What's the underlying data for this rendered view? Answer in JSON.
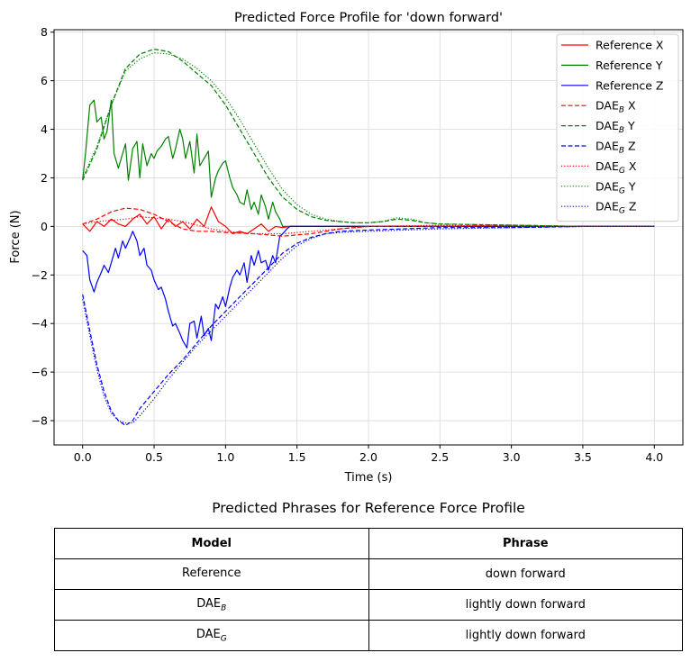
{
  "chart_data": {
    "type": "line",
    "title": "Predicted Force Profile for 'down forward'",
    "xlabel": "Time (s)",
    "ylabel": "Force (N)",
    "xlim": [
      -0.2,
      4.2
    ],
    "ylim": [
      -9.0,
      8.1
    ],
    "xticks": [
      0.0,
      0.5,
      1.0,
      1.5,
      2.0,
      2.5,
      3.0,
      3.5,
      4.0
    ],
    "xtick_labels": [
      "0.0",
      "0.5",
      "1.0",
      "1.5",
      "2.0",
      "2.5",
      "3.0",
      "3.5",
      "4.0"
    ],
    "yticks": [
      -8,
      -6,
      -4,
      -2,
      0,
      2,
      4,
      6,
      8
    ],
    "ytick_labels": [
      "−8",
      "−6",
      "−4",
      "−2",
      "0",
      "2",
      "4",
      "6",
      "8"
    ],
    "grid": true,
    "legend_position": "top-right",
    "series": [
      {
        "name": "Reference X",
        "legend_base": "Reference X",
        "legend_sub": "",
        "legend_suffix": "",
        "color": "#ff0000",
        "style": "solid",
        "x": [
          0.0,
          0.05,
          0.1,
          0.15,
          0.2,
          0.25,
          0.3,
          0.35,
          0.4,
          0.45,
          0.5,
          0.55,
          0.6,
          0.65,
          0.7,
          0.75,
          0.8,
          0.85,
          0.9,
          0.95,
          1.0,
          1.05,
          1.1,
          1.15,
          1.2,
          1.25,
          1.3,
          1.35,
          1.4,
          1.45,
          1.5,
          2.0,
          2.5,
          3.0,
          3.5,
          4.0
        ],
        "y": [
          0.1,
          -0.2,
          0.2,
          0.0,
          0.3,
          0.1,
          0.0,
          0.3,
          0.5,
          0.1,
          0.4,
          -0.1,
          0.3,
          0.0,
          0.2,
          -0.1,
          0.3,
          0.0,
          0.8,
          0.2,
          0.0,
          -0.3,
          -0.2,
          -0.3,
          -0.1,
          0.1,
          -0.2,
          0.0,
          -0.05,
          0.0,
          0.0,
          0.0,
          0.0,
          0.0,
          0.0,
          0.0
        ]
      },
      {
        "name": "Reference Y",
        "legend_base": "Reference Y",
        "legend_sub": "",
        "legend_suffix": "",
        "color": "#008000",
        "style": "solid",
        "x": [
          0.0,
          0.02,
          0.05,
          0.08,
          0.1,
          0.13,
          0.15,
          0.17,
          0.2,
          0.22,
          0.25,
          0.28,
          0.3,
          0.32,
          0.35,
          0.38,
          0.4,
          0.42,
          0.45,
          0.48,
          0.5,
          0.52,
          0.55,
          0.58,
          0.6,
          0.63,
          0.65,
          0.68,
          0.7,
          0.72,
          0.75,
          0.78,
          0.8,
          0.82,
          0.85,
          0.88,
          0.9,
          0.93,
          0.95,
          0.98,
          1.0,
          1.03,
          1.05,
          1.08,
          1.1,
          1.13,
          1.15,
          1.18,
          1.2,
          1.23,
          1.25,
          1.28,
          1.3,
          1.33,
          1.35,
          1.38,
          1.4,
          1.42,
          1.45,
          1.5,
          2.0,
          2.5,
          3.0,
          3.5,
          4.0
        ],
        "y": [
          1.9,
          3.0,
          5.0,
          5.2,
          4.3,
          4.5,
          3.6,
          3.9,
          5.2,
          3.0,
          2.4,
          3.0,
          3.4,
          1.9,
          3.2,
          3.5,
          2.0,
          3.4,
          2.5,
          3.0,
          2.8,
          3.1,
          3.3,
          3.6,
          3.7,
          2.8,
          3.2,
          4.0,
          3.6,
          2.8,
          3.5,
          2.2,
          3.8,
          2.5,
          2.8,
          3.1,
          1.2,
          2.0,
          2.3,
          2.6,
          2.7,
          2.0,
          1.6,
          1.3,
          1.0,
          0.9,
          1.5,
          0.7,
          1.0,
          0.5,
          1.3,
          0.8,
          0.3,
          1.0,
          0.6,
          0.3,
          0.0,
          0.0,
          0.0,
          0.0,
          0.0,
          0.0,
          0.0,
          0.0,
          0.0
        ]
      },
      {
        "name": "Reference Z",
        "legend_base": "Reference Z",
        "legend_sub": "",
        "legend_suffix": "",
        "color": "#0000ff",
        "style": "solid",
        "x": [
          0.0,
          0.03,
          0.05,
          0.08,
          0.1,
          0.13,
          0.15,
          0.18,
          0.2,
          0.23,
          0.25,
          0.28,
          0.3,
          0.33,
          0.35,
          0.38,
          0.4,
          0.43,
          0.45,
          0.48,
          0.5,
          0.53,
          0.55,
          0.58,
          0.6,
          0.63,
          0.65,
          0.68,
          0.7,
          0.73,
          0.75,
          0.78,
          0.8,
          0.83,
          0.85,
          0.88,
          0.9,
          0.93,
          0.95,
          0.98,
          1.0,
          1.03,
          1.05,
          1.08,
          1.1,
          1.13,
          1.15,
          1.18,
          1.2,
          1.23,
          1.25,
          1.28,
          1.3,
          1.33,
          1.35,
          1.38,
          1.4,
          1.43,
          1.45,
          1.5,
          2.0,
          2.5,
          3.0,
          3.5,
          4.0
        ],
        "y": [
          -1.0,
          -1.2,
          -2.2,
          -2.7,
          -2.3,
          -1.9,
          -1.6,
          -1.9,
          -1.5,
          -0.9,
          -1.3,
          -0.6,
          -0.9,
          -0.5,
          -0.2,
          -0.6,
          -1.2,
          -0.9,
          -1.6,
          -1.8,
          -2.2,
          -2.6,
          -2.5,
          -3.0,
          -3.5,
          -4.1,
          -4.0,
          -4.4,
          -4.7,
          -5.0,
          -4.0,
          -3.9,
          -4.6,
          -3.7,
          -4.5,
          -4.2,
          -4.7,
          -3.2,
          -3.4,
          -2.9,
          -3.3,
          -2.5,
          -2.1,
          -1.8,
          -2.0,
          -1.5,
          -2.3,
          -1.2,
          -1.6,
          -1.0,
          -1.5,
          -1.4,
          -1.8,
          -1.2,
          -1.5,
          -0.4,
          -0.3,
          -0.1,
          0.0,
          0.0,
          0.0,
          0.0,
          0.0,
          0.0,
          0.0
        ]
      },
      {
        "name": "DAEB X",
        "legend_base": "DAE",
        "legend_sub": "B",
        "legend_suffix": " X",
        "color": "#ff0000",
        "style": "dashed",
        "x": [
          0.0,
          0.1,
          0.2,
          0.3,
          0.4,
          0.5,
          0.6,
          0.7,
          0.8,
          0.9,
          1.0,
          1.2,
          1.4,
          1.6,
          1.8,
          2.0,
          2.5,
          3.0,
          3.5,
          4.0
        ],
        "y": [
          0.1,
          0.3,
          0.6,
          0.75,
          0.7,
          0.5,
          0.2,
          -0.1,
          -0.2,
          -0.2,
          -0.25,
          -0.3,
          -0.4,
          -0.3,
          -0.1,
          0.0,
          0.0,
          0.05,
          0.0,
          0.0
        ]
      },
      {
        "name": "DAEB Y",
        "legend_base": "DAE",
        "legend_sub": "B",
        "legend_suffix": " Y",
        "color": "#008000",
        "style": "dashed",
        "x": [
          0.0,
          0.1,
          0.2,
          0.3,
          0.4,
          0.5,
          0.6,
          0.7,
          0.8,
          0.9,
          1.0,
          1.1,
          1.2,
          1.3,
          1.4,
          1.5,
          1.6,
          1.7,
          1.8,
          1.9,
          2.0,
          2.1,
          2.2,
          2.3,
          2.4,
          2.5,
          3.0,
          3.5,
          4.0
        ],
        "y": [
          1.9,
          3.2,
          5.0,
          6.5,
          7.1,
          7.3,
          7.2,
          6.8,
          6.3,
          5.8,
          5.0,
          4.0,
          3.0,
          2.0,
          1.2,
          0.7,
          0.4,
          0.25,
          0.2,
          0.15,
          0.15,
          0.2,
          0.3,
          0.25,
          0.15,
          0.1,
          0.05,
          0.0,
          0.0
        ]
      },
      {
        "name": "DAEB Z",
        "legend_base": "DAE",
        "legend_sub": "B",
        "legend_suffix": " Z",
        "color": "#0000ff",
        "style": "dashed",
        "x": [
          0.0,
          0.05,
          0.1,
          0.15,
          0.2,
          0.25,
          0.3,
          0.35,
          0.4,
          0.5,
          0.6,
          0.7,
          0.8,
          0.9,
          1.0,
          1.1,
          1.2,
          1.3,
          1.4,
          1.5,
          1.6,
          1.7,
          1.8,
          2.0,
          2.5,
          3.0,
          3.5,
          4.0
        ],
        "y": [
          -2.8,
          -4.3,
          -5.7,
          -6.8,
          -7.6,
          -8.0,
          -8.2,
          -8.0,
          -7.5,
          -6.8,
          -6.1,
          -5.5,
          -4.8,
          -4.1,
          -3.5,
          -2.9,
          -2.3,
          -1.7,
          -1.1,
          -0.7,
          -0.45,
          -0.3,
          -0.2,
          -0.15,
          -0.05,
          -0.05,
          0.0,
          0.0
        ]
      },
      {
        "name": "DAEG X",
        "legend_base": "DAE",
        "legend_sub": "G",
        "legend_suffix": " X",
        "color": "#ff0000",
        "style": "dotted",
        "x": [
          0.0,
          0.1,
          0.2,
          0.3,
          0.4,
          0.5,
          0.6,
          0.7,
          0.8,
          0.9,
          1.0,
          1.2,
          1.4,
          1.6,
          1.8,
          2.0,
          2.5,
          3.0,
          3.5,
          4.0
        ],
        "y": [
          0.1,
          0.2,
          0.25,
          0.3,
          0.4,
          0.35,
          0.3,
          0.2,
          0.05,
          -0.1,
          -0.2,
          -0.3,
          -0.3,
          -0.2,
          -0.1,
          0.0,
          0.05,
          0.0,
          0.0,
          0.0
        ]
      },
      {
        "name": "DAEG Y",
        "legend_base": "DAE",
        "legend_sub": "G",
        "legend_suffix": " Y",
        "color": "#008000",
        "style": "dotted",
        "x": [
          0.0,
          0.1,
          0.2,
          0.3,
          0.4,
          0.5,
          0.6,
          0.7,
          0.8,
          0.9,
          1.0,
          1.1,
          1.2,
          1.3,
          1.4,
          1.5,
          1.6,
          1.7,
          1.8,
          1.9,
          2.0,
          2.1,
          2.2,
          2.3,
          2.4,
          2.5,
          3.0,
          3.5,
          4.0
        ],
        "y": [
          2.0,
          3.3,
          5.0,
          6.4,
          6.9,
          7.15,
          7.1,
          6.9,
          6.5,
          6.0,
          5.3,
          4.4,
          3.4,
          2.4,
          1.5,
          0.9,
          0.5,
          0.3,
          0.2,
          0.15,
          0.15,
          0.2,
          0.35,
          0.3,
          0.15,
          0.1,
          0.05,
          0.0,
          0.0
        ]
      },
      {
        "name": "DAEG Z",
        "legend_base": "DAE",
        "legend_sub": "G",
        "legend_suffix": " Z",
        "color": "#0000ff",
        "style": "dotted",
        "x": [
          0.0,
          0.05,
          0.1,
          0.15,
          0.2,
          0.25,
          0.3,
          0.35,
          0.4,
          0.5,
          0.6,
          0.7,
          0.8,
          0.9,
          1.0,
          1.1,
          1.2,
          1.3,
          1.4,
          1.5,
          1.6,
          1.7,
          1.8,
          2.0,
          2.5,
          3.0,
          3.5,
          4.0
        ],
        "y": [
          -3.0,
          -4.5,
          -5.9,
          -7.0,
          -7.7,
          -8.0,
          -8.1,
          -8.1,
          -7.8,
          -7.1,
          -6.3,
          -5.6,
          -4.9,
          -4.3,
          -3.7,
          -3.1,
          -2.5,
          -1.9,
          -1.3,
          -0.8,
          -0.5,
          -0.3,
          -0.25,
          -0.2,
          -0.1,
          -0.05,
          0.0,
          0.0
        ]
      }
    ]
  },
  "table": {
    "title": "Predicted Phrases for Reference Force Profile",
    "headers": [
      "Model",
      "Phrase"
    ],
    "rows": [
      {
        "model_base": "Reference",
        "model_sub": "",
        "phrase": "down forward"
      },
      {
        "model_base": "DAE",
        "model_sub": "B",
        "phrase": "lightly down forward"
      },
      {
        "model_base": "DAE",
        "model_sub": "G",
        "phrase": "lightly down forward"
      }
    ]
  }
}
